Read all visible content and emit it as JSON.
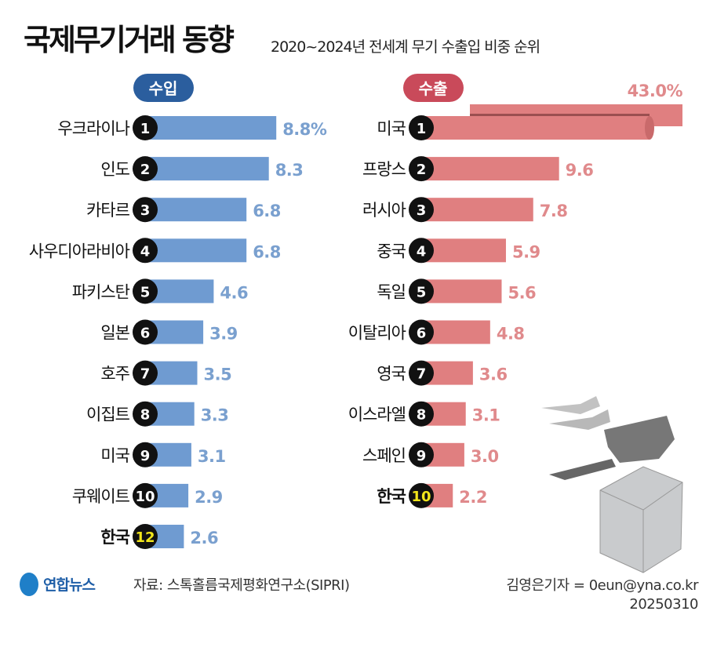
{
  "header": {
    "title": "국제무기거래 동향",
    "subtitle": "2020~2024년 전세계 무기 수출입 비중 순위"
  },
  "chart_data": [
    {
      "type": "bar",
      "orientation": "horizontal",
      "title": "수입",
      "unit": "%",
      "categories": [
        "우크라이나",
        "인도",
        "카타르",
        "사우디아라비아",
        "파키스탄",
        "일본",
        "호주",
        "이집트",
        "미국",
        "쿠웨이트",
        "한국"
      ],
      "ranks": [
        "1",
        "2",
        "3",
        "4",
        "5",
        "6",
        "7",
        "8",
        "9",
        "10",
        "12"
      ],
      "values": [
        8.8,
        8.3,
        6.8,
        6.8,
        4.6,
        3.9,
        3.5,
        3.3,
        3.1,
        2.9,
        2.6
      ],
      "value_labels": [
        "8.8%",
        "8.3",
        "6.8",
        "6.8",
        "4.6",
        "3.9",
        "3.5",
        "3.3",
        "3.1",
        "2.9",
        "2.6"
      ],
      "highlight": "한국",
      "bar_color": "#6f9bd1",
      "label_color": "#7aa0cf",
      "header_color": "#2b5e9e"
    },
    {
      "type": "bar",
      "orientation": "horizontal",
      "title": "수출",
      "unit": "%",
      "categories": [
        "미국",
        "프랑스",
        "러시아",
        "중국",
        "독일",
        "이탈리아",
        "영국",
        "이스라엘",
        "스페인",
        "한국"
      ],
      "ranks": [
        "1",
        "2",
        "3",
        "4",
        "5",
        "6",
        "7",
        "8",
        "9",
        "10"
      ],
      "values": [
        43.0,
        9.6,
        7.8,
        5.9,
        5.6,
        4.8,
        3.6,
        3.1,
        3.0,
        2.2
      ],
      "value_labels": [
        "43.0%",
        "9.6",
        "7.8",
        "5.9",
        "5.6",
        "4.8",
        "3.6",
        "3.1",
        "3.0",
        "2.2"
      ],
      "highlight": "한국",
      "bar_color": "#e07f80",
      "label_color": "#e08a8c",
      "header_color": "#c94a5a"
    }
  ],
  "footer": {
    "logo": "연합뉴스",
    "source": "자료: 스톡홀름국제평화연구소(SIPRI)",
    "reporter": "김영은기자 = 0eun@yna.co.kr",
    "date": "20250310"
  }
}
